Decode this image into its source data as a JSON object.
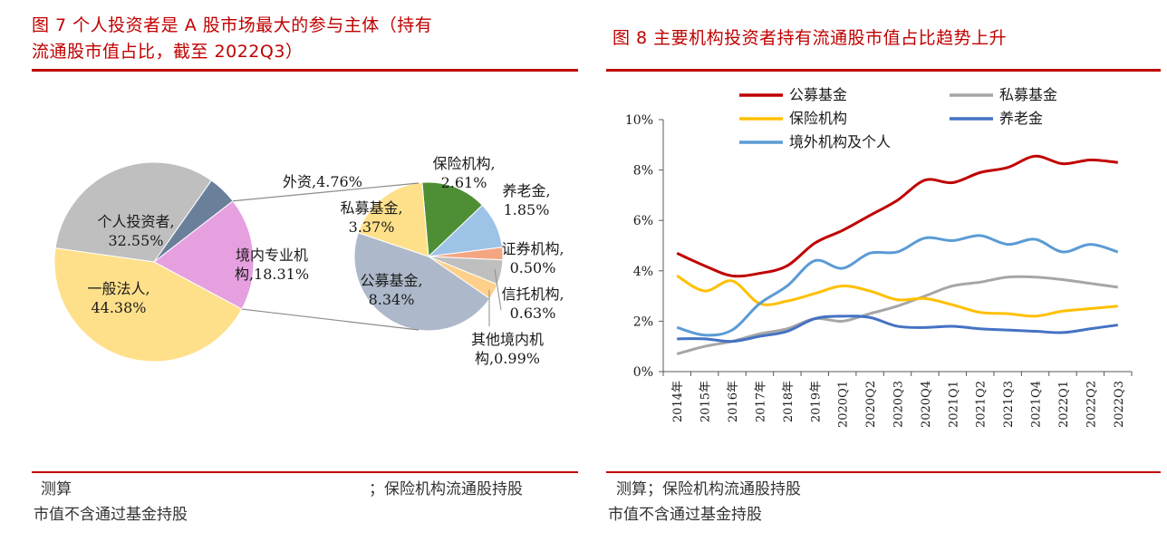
{
  "left": {
    "title_line1": "图 7   个人投资者是 A 股市场最大的参与主体（持有",
    "title_line2": "流通股市值占比，截至 2022Q3）",
    "source_line1_a": "测算",
    "source_line1_b": "；保险机构流通股持股",
    "source_line2": "市值不含通过基金持股"
  },
  "right": {
    "title": "图 8    主要机构投资者持有流通股市值占比趋势上升",
    "source_line1": "测算；保险机构流通股持股",
    "source_line2": "市值不含通过基金持股"
  },
  "chart_data": [
    {
      "type": "pie",
      "slices": [
        {
          "label": "个人投资者,",
          "label2": "32.55%",
          "value": 32.55,
          "color": "#bfbfbf"
        },
        {
          "label": "外资,4.76%",
          "label2": "",
          "value": 4.76,
          "color": "#6a7f9a"
        },
        {
          "label": "境内专业机",
          "label2": "构,18.31%",
          "value": 18.31,
          "color": "#e6a0e0"
        },
        {
          "label": "一般法人,",
          "label2": "44.38%",
          "value": 44.38,
          "color": "#ffe08a"
        }
      ],
      "breakout": [
        {
          "label": "保险机构,",
          "label2": "2.61%",
          "value": 2.61,
          "color": "#4e8f35"
        },
        {
          "label": "养老金,",
          "label2": "1.85%",
          "value": 1.85,
          "color": "#9dc3e6"
        },
        {
          "label": "证券机构,",
          "label2": "0.50%",
          "value": 0.5,
          "color": "#f4a582"
        },
        {
          "label": "其他境内机",
          "label2": "构,0.99%",
          "value": 0.99,
          "color": "#bfbfbf"
        },
        {
          "label": "信托机构,",
          "label2": "0.63%",
          "value": 0.63,
          "color": "#ffd08a"
        },
        {
          "label": "公募基金,",
          "label2": "8.34%",
          "value": 8.34,
          "color": "#adb9ca"
        },
        {
          "label": "私募基金,",
          "label2": "3.37%",
          "value": 3.37,
          "color": "#ffe08a"
        }
      ]
    },
    {
      "type": "line",
      "categories": [
        "2014年",
        "2015年",
        "2016年",
        "2017年",
        "2018年",
        "2019年",
        "2020Q1",
        "2020Q2",
        "2020Q3",
        "2020Q4",
        "2021Q1",
        "2021Q2",
        "2021Q3",
        "2021Q4",
        "2022Q1",
        "2022Q2",
        "2022Q3"
      ],
      "ylim": [
        0,
        10
      ],
      "yticks": [
        "0%",
        "2%",
        "4%",
        "6%",
        "8%",
        "10%"
      ],
      "legend_position": "top",
      "series": [
        {
          "name": "公募基金",
          "color": "#c00000",
          "values": [
            4.7,
            4.2,
            3.8,
            3.9,
            4.2,
            5.1,
            5.6,
            6.2,
            6.8,
            7.6,
            7.5,
            7.9,
            8.1,
            8.55,
            8.25,
            8.4,
            8.3
          ]
        },
        {
          "name": "私募基金",
          "color": "#a6a6a6",
          "values": [
            0.7,
            1.0,
            1.2,
            1.5,
            1.7,
            2.1,
            2.0,
            2.3,
            2.6,
            3.0,
            3.4,
            3.55,
            3.75,
            3.75,
            3.65,
            3.5,
            3.35
          ]
        },
        {
          "name": "保险机构",
          "color": "#ffc000",
          "values": [
            3.8,
            3.2,
            3.6,
            2.7,
            2.8,
            3.1,
            3.4,
            3.2,
            2.85,
            2.9,
            2.65,
            2.35,
            2.3,
            2.2,
            2.4,
            2.5,
            2.6
          ]
        },
        {
          "name": "养老金",
          "color": "#4472c4",
          "values": [
            1.3,
            1.3,
            1.2,
            1.4,
            1.6,
            2.1,
            2.2,
            2.15,
            1.8,
            1.75,
            1.8,
            1.7,
            1.65,
            1.6,
            1.55,
            1.7,
            1.85
          ]
        },
        {
          "name": "境外机构及个人",
          "color": "#5b9bd5",
          "values": [
            1.75,
            1.45,
            1.65,
            2.7,
            3.4,
            4.4,
            4.1,
            4.7,
            4.75,
            5.3,
            5.2,
            5.4,
            5.05,
            5.25,
            4.75,
            5.05,
            4.75
          ]
        }
      ]
    }
  ]
}
